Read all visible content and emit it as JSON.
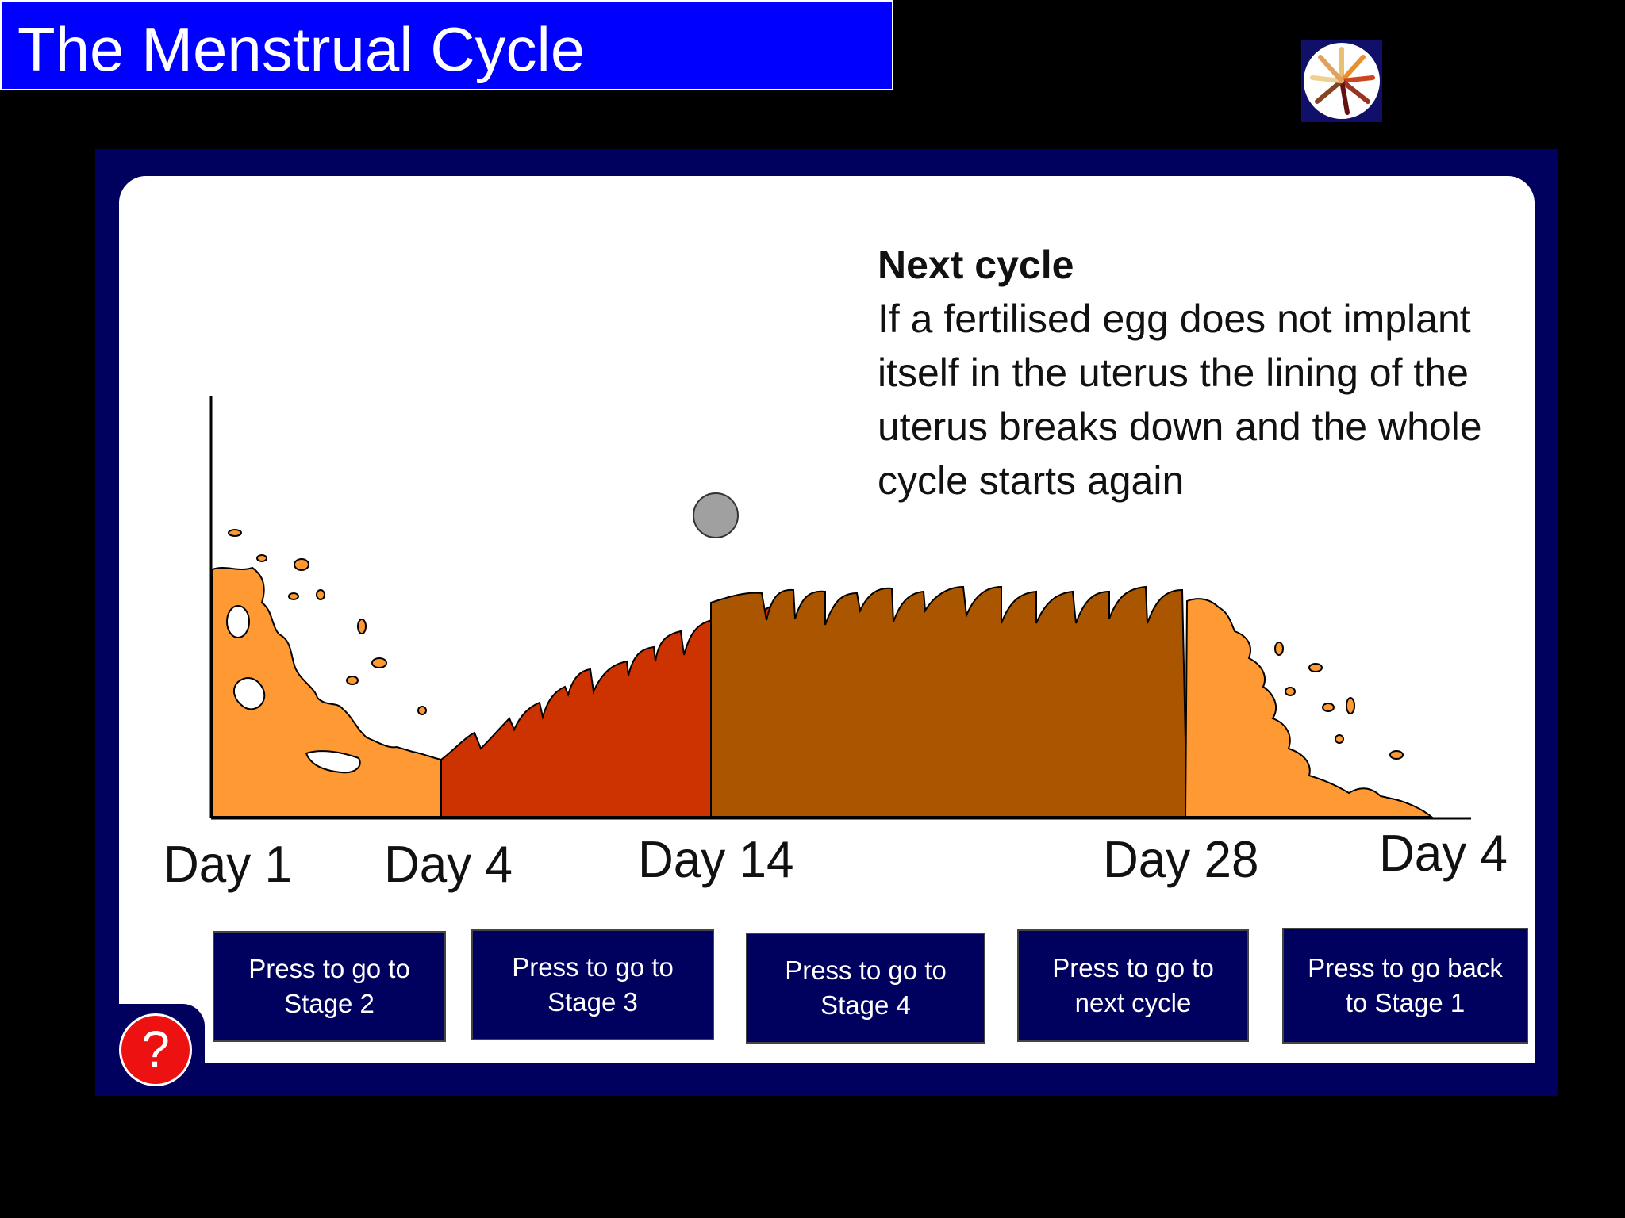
{
  "title": "The Menstrual Cycle",
  "info": {
    "heading": "Next cycle",
    "body": "If a fertilised egg does not implant itself in the uterus the lining of the uterus breaks down and the whole cycle starts again"
  },
  "timeline": {
    "days": [
      "Day 1",
      "Day 4",
      "Day 14",
      "Day 28",
      "Day 4"
    ]
  },
  "buttons": [
    "Press to go to Stage 2",
    "Press to go to Stage 3",
    "Press to go to Stage 4",
    "Press to go to next cycle",
    "Press to go back to Stage 1"
  ],
  "help": {
    "label": "?"
  },
  "colors": {
    "title_bg": "#0000ff",
    "panel_frame": "#00005e",
    "lining_light_orange": "#ff9933",
    "lining_red": "#cc3300",
    "lining_brown": "#aa5500",
    "egg": "#a0a0a0",
    "help": "#ee1111"
  },
  "icons": [
    "logo-icon",
    "egg-icon",
    "help-icon"
  ]
}
